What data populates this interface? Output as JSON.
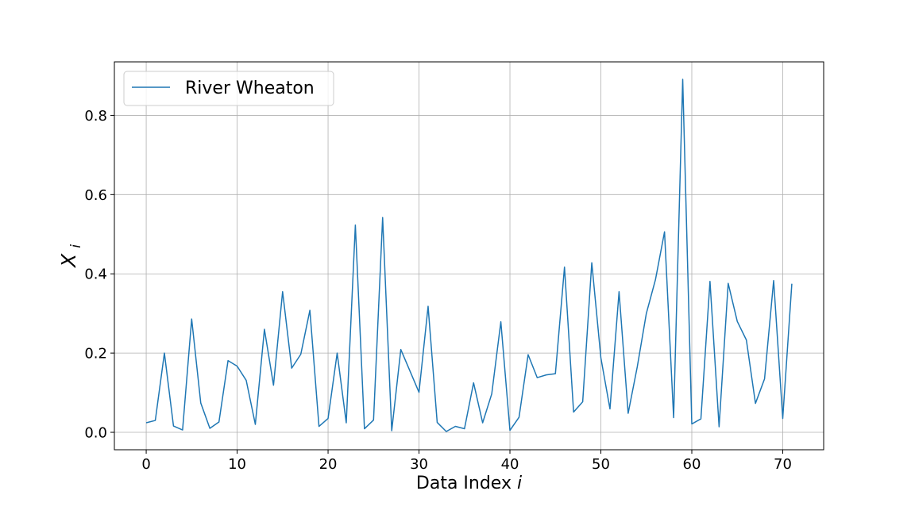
{
  "chart_data": {
    "type": "line",
    "title": "",
    "xlabel": "Data Index",
    "xlabel_var": "i",
    "ylabel_var": "X",
    "ylabel_sub": "i",
    "xlim": [
      -3.5,
      74.5
    ],
    "ylim": [
      -0.044,
      0.935
    ],
    "xticks": [
      0,
      10,
      20,
      30,
      40,
      50,
      60,
      70
    ],
    "yticks": [
      0.0,
      0.2,
      0.4,
      0.6,
      0.8
    ],
    "xtick_labels": [
      "0",
      "10",
      "20",
      "30",
      "40",
      "50",
      "60",
      "70"
    ],
    "ytick_labels": [
      "0.0",
      "0.2",
      "0.4",
      "0.6",
      "0.8"
    ],
    "grid": true,
    "legend_position": "top-left",
    "color": "#1f77b4",
    "series": [
      {
        "name": "River Wheaton",
        "x": [
          0,
          1,
          2,
          3,
          4,
          5,
          6,
          7,
          8,
          9,
          10,
          11,
          12,
          13,
          14,
          15,
          16,
          17,
          18,
          19,
          20,
          21,
          22,
          23,
          24,
          25,
          26,
          27,
          28,
          29,
          30,
          31,
          32,
          33,
          34,
          35,
          36,
          37,
          38,
          39,
          40,
          41,
          42,
          43,
          44,
          45,
          46,
          47,
          48,
          49,
          50,
          51,
          52,
          53,
          54,
          55,
          56,
          57,
          58,
          59,
          60,
          61,
          62,
          63,
          64,
          65,
          66,
          67,
          68,
          69,
          70,
          71
        ],
        "y": [
          0.024,
          0.03,
          0.2,
          0.016,
          0.006,
          0.286,
          0.074,
          0.01,
          0.026,
          0.181,
          0.167,
          0.131,
          0.02,
          0.26,
          0.119,
          0.355,
          0.162,
          0.197,
          0.308,
          0.015,
          0.035,
          0.2,
          0.024,
          0.523,
          0.009,
          0.031,
          0.542,
          0.004,
          0.209,
          0.155,
          0.101,
          0.318,
          0.025,
          0.002,
          0.015,
          0.009,
          0.125,
          0.024,
          0.097,
          0.279,
          0.005,
          0.038,
          0.196,
          0.138,
          0.145,
          0.148,
          0.417,
          0.051,
          0.077,
          0.428,
          0.188,
          0.059,
          0.355,
          0.048,
          0.165,
          0.3,
          0.385,
          0.506,
          0.037,
          0.891,
          0.021,
          0.034,
          0.381,
          0.014,
          0.376,
          0.28,
          0.233,
          0.073,
          0.135,
          0.383,
          0.035,
          0.375
        ]
      }
    ]
  }
}
